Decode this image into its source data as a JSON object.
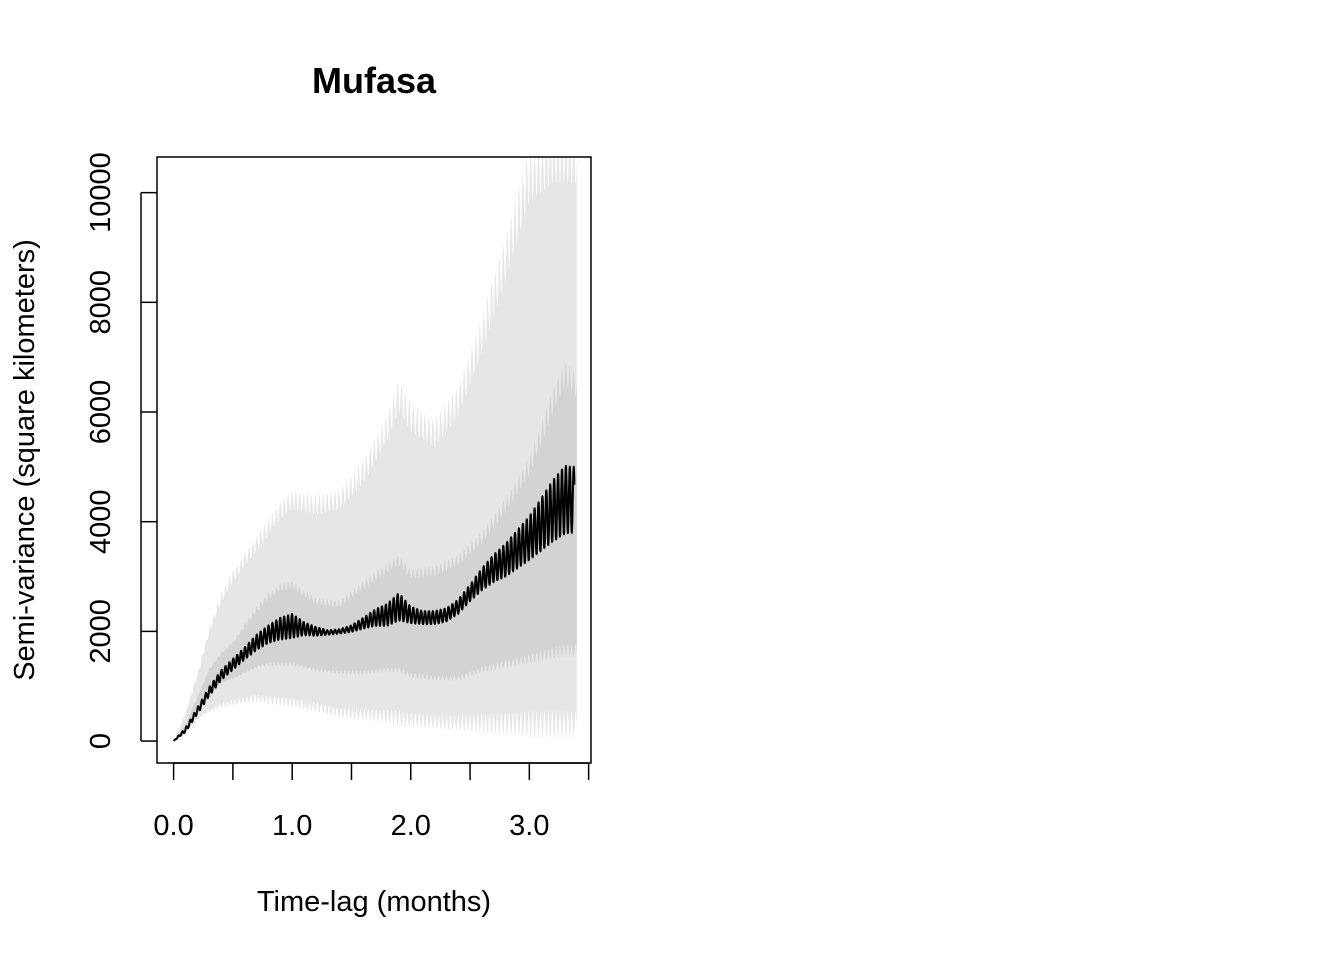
{
  "chart_data": {
    "type": "area",
    "title": "Mufasa",
    "xlabel": "Time-lag (months)",
    "ylabel": "Semi-variance (square kilometers)",
    "xlim": [
      -0.14,
      3.52
    ],
    "ylim": [
      -400,
      10650
    ],
    "grid": false,
    "legend": "none",
    "x_ticks": [
      0.0,
      0.5,
      1.0,
      1.5,
      2.0,
      2.5,
      3.0,
      3.5
    ],
    "x_tick_labels": [
      "0.0",
      "1.0",
      "2.0",
      "3.0"
    ],
    "x_tick_label_values": [
      0.0,
      1.0,
      2.0,
      3.0
    ],
    "y_ticks": [
      0,
      2000,
      4000,
      6000,
      8000,
      10000
    ],
    "y_tick_labels": [
      "0",
      "2000",
      "4000",
      "6000",
      "8000",
      "10000"
    ],
    "oscillation_period": 0.033,
    "series": [
      {
        "role": "outer-band",
        "x": [
          0.0,
          0.1,
          0.2,
          0.3,
          0.4,
          0.5,
          0.6,
          0.7,
          0.8,
          0.9,
          1.0,
          1.2,
          1.4,
          1.6,
          1.8,
          1.9,
          2.0,
          2.2,
          2.4,
          2.6,
          2.8,
          3.0,
          3.2,
          3.3,
          3.4
        ],
        "low": [
          0,
          150,
          400,
          550,
          650,
          700,
          750,
          780,
          760,
          720,
          700,
          620,
          520,
          480,
          450,
          420,
          380,
          350,
          330,
          320,
          320,
          310,
          300,
          300,
          300
        ],
        "high": [
          0,
          500,
          1200,
          2000,
          2600,
          3000,
          3300,
          3600,
          3900,
          4200,
          4400,
          4300,
          4400,
          4900,
          5700,
          6300,
          5900,
          5600,
          6200,
          7400,
          8800,
          10300,
          10650,
          10650,
          10650
        ],
        "color": "#e6e6e6"
      },
      {
        "role": "inner-band",
        "x": [
          0.0,
          0.1,
          0.2,
          0.3,
          0.4,
          0.5,
          0.6,
          0.7,
          0.8,
          0.9,
          1.0,
          1.2,
          1.4,
          1.6,
          1.8,
          1.9,
          2.0,
          2.2,
          2.4,
          2.6,
          2.8,
          3.0,
          3.2,
          3.3,
          3.4
        ],
        "low": [
          0,
          180,
          500,
          850,
          1050,
          1150,
          1250,
          1350,
          1400,
          1400,
          1400,
          1300,
          1250,
          1250,
          1300,
          1300,
          1200,
          1150,
          1150,
          1300,
          1400,
          1500,
          1600,
          1650,
          1650
        ],
        "high": [
          0,
          300,
          800,
          1300,
          1600,
          1800,
          2100,
          2400,
          2650,
          2800,
          2850,
          2550,
          2500,
          2850,
          3150,
          3300,
          3050,
          3100,
          3300,
          3700,
          4300,
          5000,
          6200,
          6700,
          6500
        ],
        "color": "#d3d3d3"
      },
      {
        "role": "empirical-semivariance",
        "x": [
          0.0,
          0.1,
          0.2,
          0.3,
          0.4,
          0.5,
          0.6,
          0.7,
          0.8,
          0.9,
          1.0,
          1.1,
          1.2,
          1.3,
          1.4,
          1.5,
          1.6,
          1.7,
          1.8,
          1.9,
          2.0,
          2.1,
          2.2,
          2.3,
          2.4,
          2.5,
          2.6,
          2.7,
          2.8,
          2.9,
          3.0,
          3.1,
          3.2,
          3.3,
          3.38
        ],
        "y": [
          0,
          200,
          550,
          900,
          1200,
          1400,
          1600,
          1800,
          1950,
          2050,
          2100,
          2050,
          2000,
          1980,
          2000,
          2050,
          2150,
          2250,
          2300,
          2450,
          2300,
          2250,
          2250,
          2300,
          2450,
          2700,
          2950,
          3150,
          3300,
          3500,
          3700,
          3950,
          4200,
          4400,
          4400
        ],
        "amplitude": [
          0,
          40,
          60,
          80,
          90,
          100,
          110,
          140,
          160,
          200,
          220,
          120,
          80,
          40,
          40,
          60,
          100,
          150,
          200,
          250,
          150,
          120,
          120,
          120,
          130,
          150,
          200,
          250,
          300,
          350,
          400,
          480,
          560,
          620,
          600
        ],
        "color": "#000000"
      }
    ]
  }
}
